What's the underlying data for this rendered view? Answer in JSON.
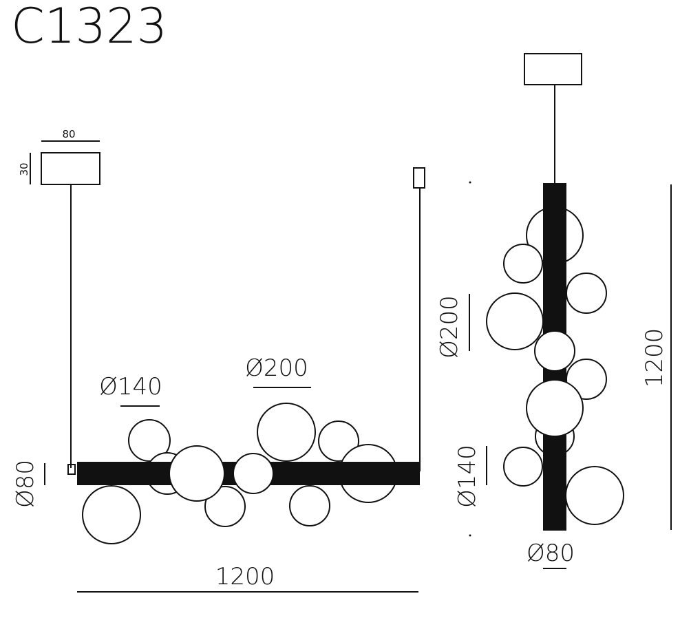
{
  "title": "C1323",
  "front_view": {
    "canopy_width": "80",
    "canopy_height": "30",
    "diameter_small": "Ø140",
    "diameter_large": "Ø200",
    "tube_diameter": "Ø80",
    "length": "1200"
  },
  "side_view": {
    "diameter_large": "Ø200",
    "diameter_small": "Ø140",
    "tube_diameter": "Ø80",
    "length": "1200"
  }
}
